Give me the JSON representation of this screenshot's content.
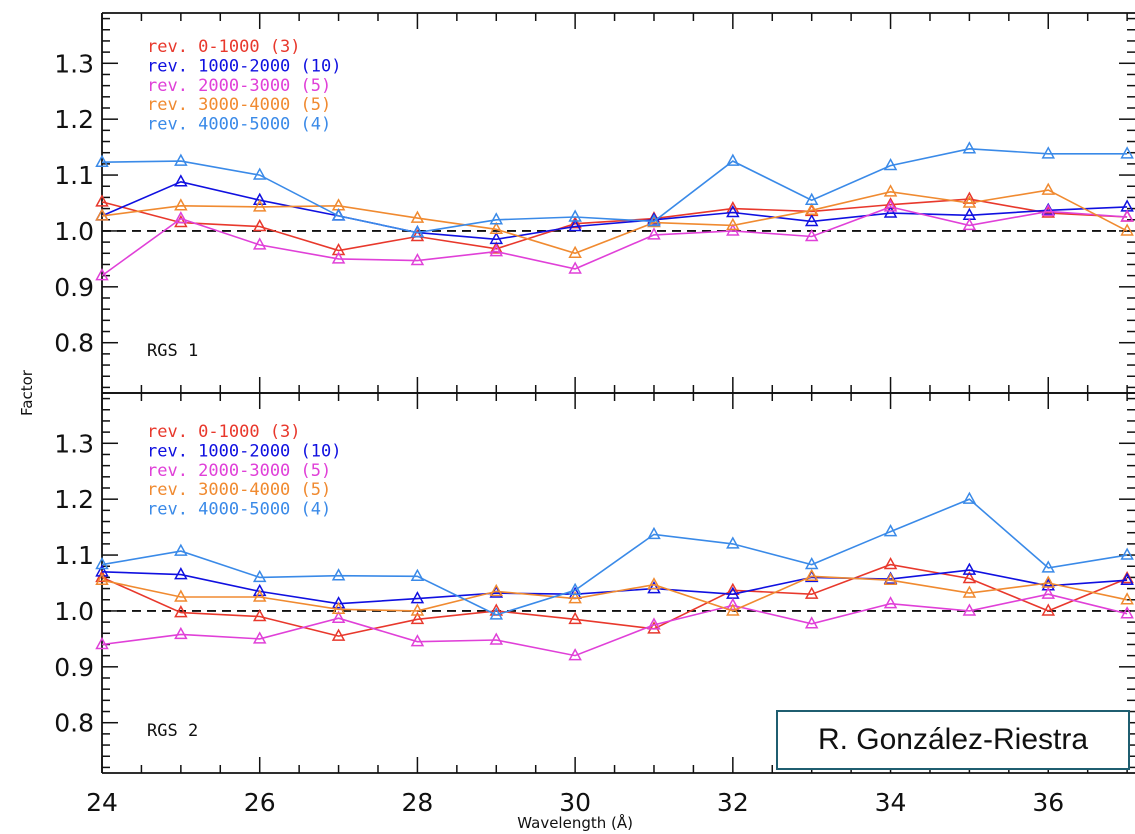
{
  "credit": "R. González-Riestra",
  "chart_data": {
    "type": "line",
    "xlabel": "Wavelength (Å)",
    "ylabel": "Factor",
    "xlim": [
      24,
      37.1
    ],
    "ylim": [
      0.71,
      1.39
    ],
    "x_ticks": [
      24,
      26,
      28,
      30,
      32,
      34,
      36
    ],
    "y_ticks": [
      0.8,
      0.9,
      1.0,
      1.1,
      1.2,
      1.3
    ],
    "y_tick_labels": [
      "0.8",
      "0.9",
      "1.0",
      "1.1",
      "1.2",
      "1.3"
    ],
    "reference_line": 1.0,
    "marker": "triangle",
    "x": [
      24,
      25,
      26,
      27,
      28,
      29,
      30,
      31,
      32,
      33,
      34,
      35,
      36,
      37
    ],
    "panels": [
      {
        "label": "RGS 1",
        "series": [
          {
            "name": "rev. 0-1000 (3)",
            "color": "#e8382c",
            "values": [
              1.052,
              1.015,
              1.008,
              0.965,
              0.99,
              0.968,
              1.013,
              1.022,
              1.04,
              1.035,
              1.047,
              1.057,
              1.032,
              1.025
            ]
          },
          {
            "name": "rev. 1000-2000 (10)",
            "color": "#1010e0",
            "values": [
              1.027,
              1.088,
              1.055,
              1.027,
              0.997,
              0.985,
              1.008,
              1.02,
              1.033,
              1.017,
              1.032,
              1.028,
              1.037,
              1.043
            ]
          },
          {
            "name": "rev. 2000-3000 (5)",
            "color": "#e040d8",
            "values": [
              0.92,
              1.022,
              0.975,
              0.95,
              0.947,
              0.963,
              0.932,
              0.993,
              1.0,
              0.99,
              1.043,
              1.01,
              1.035,
              1.025
            ]
          },
          {
            "name": "rev. 3000-4000 (5)",
            "color": "#f08a30",
            "values": [
              1.027,
              1.045,
              1.043,
              1.045,
              1.023,
              1.003,
              0.96,
              1.015,
              1.01,
              1.037,
              1.07,
              1.05,
              1.073,
              1.0
            ]
          },
          {
            "name": "rev. 4000-5000 (4)",
            "color": "#3a8ae8",
            "values": [
              1.123,
              1.125,
              1.1,
              1.027,
              0.997,
              1.02,
              1.025,
              1.017,
              1.125,
              1.055,
              1.117,
              1.147,
              1.138,
              1.138
            ]
          }
        ]
      },
      {
        "label": "RGS 2",
        "series": [
          {
            "name": "rev. 0-1000 (3)",
            "color": "#e8382c",
            "values": [
              1.06,
              0.997,
              0.99,
              0.955,
              0.985,
              1.0,
              0.985,
              0.968,
              1.037,
              1.03,
              1.083,
              1.058,
              1.0,
              1.058
            ]
          },
          {
            "name": "rev. 1000-2000 (10)",
            "color": "#1010e0",
            "values": [
              1.07,
              1.065,
              1.035,
              1.013,
              1.022,
              1.032,
              1.03,
              1.04,
              1.03,
              1.06,
              1.057,
              1.073,
              1.045,
              1.055
            ]
          },
          {
            "name": "rev. 2000-3000 (5)",
            "color": "#e040d8",
            "values": [
              0.94,
              0.958,
              0.95,
              0.987,
              0.945,
              0.948,
              0.92,
              0.975,
              1.01,
              0.977,
              1.013,
              1.0,
              1.03,
              0.995
            ]
          },
          {
            "name": "rev. 3000-4000 (5)",
            "color": "#f08a30",
            "values": [
              1.055,
              1.025,
              1.025,
              1.003,
              1.0,
              1.035,
              1.022,
              1.047,
              1.0,
              1.062,
              1.055,
              1.032,
              1.05,
              1.02
            ]
          },
          {
            "name": "rev. 4000-5000 (4)",
            "color": "#3a8ae8",
            "values": [
              1.083,
              1.107,
              1.06,
              1.063,
              1.062,
              0.993,
              1.037,
              1.137,
              1.12,
              1.083,
              1.142,
              1.2,
              1.077,
              1.1
            ]
          }
        ]
      }
    ]
  }
}
